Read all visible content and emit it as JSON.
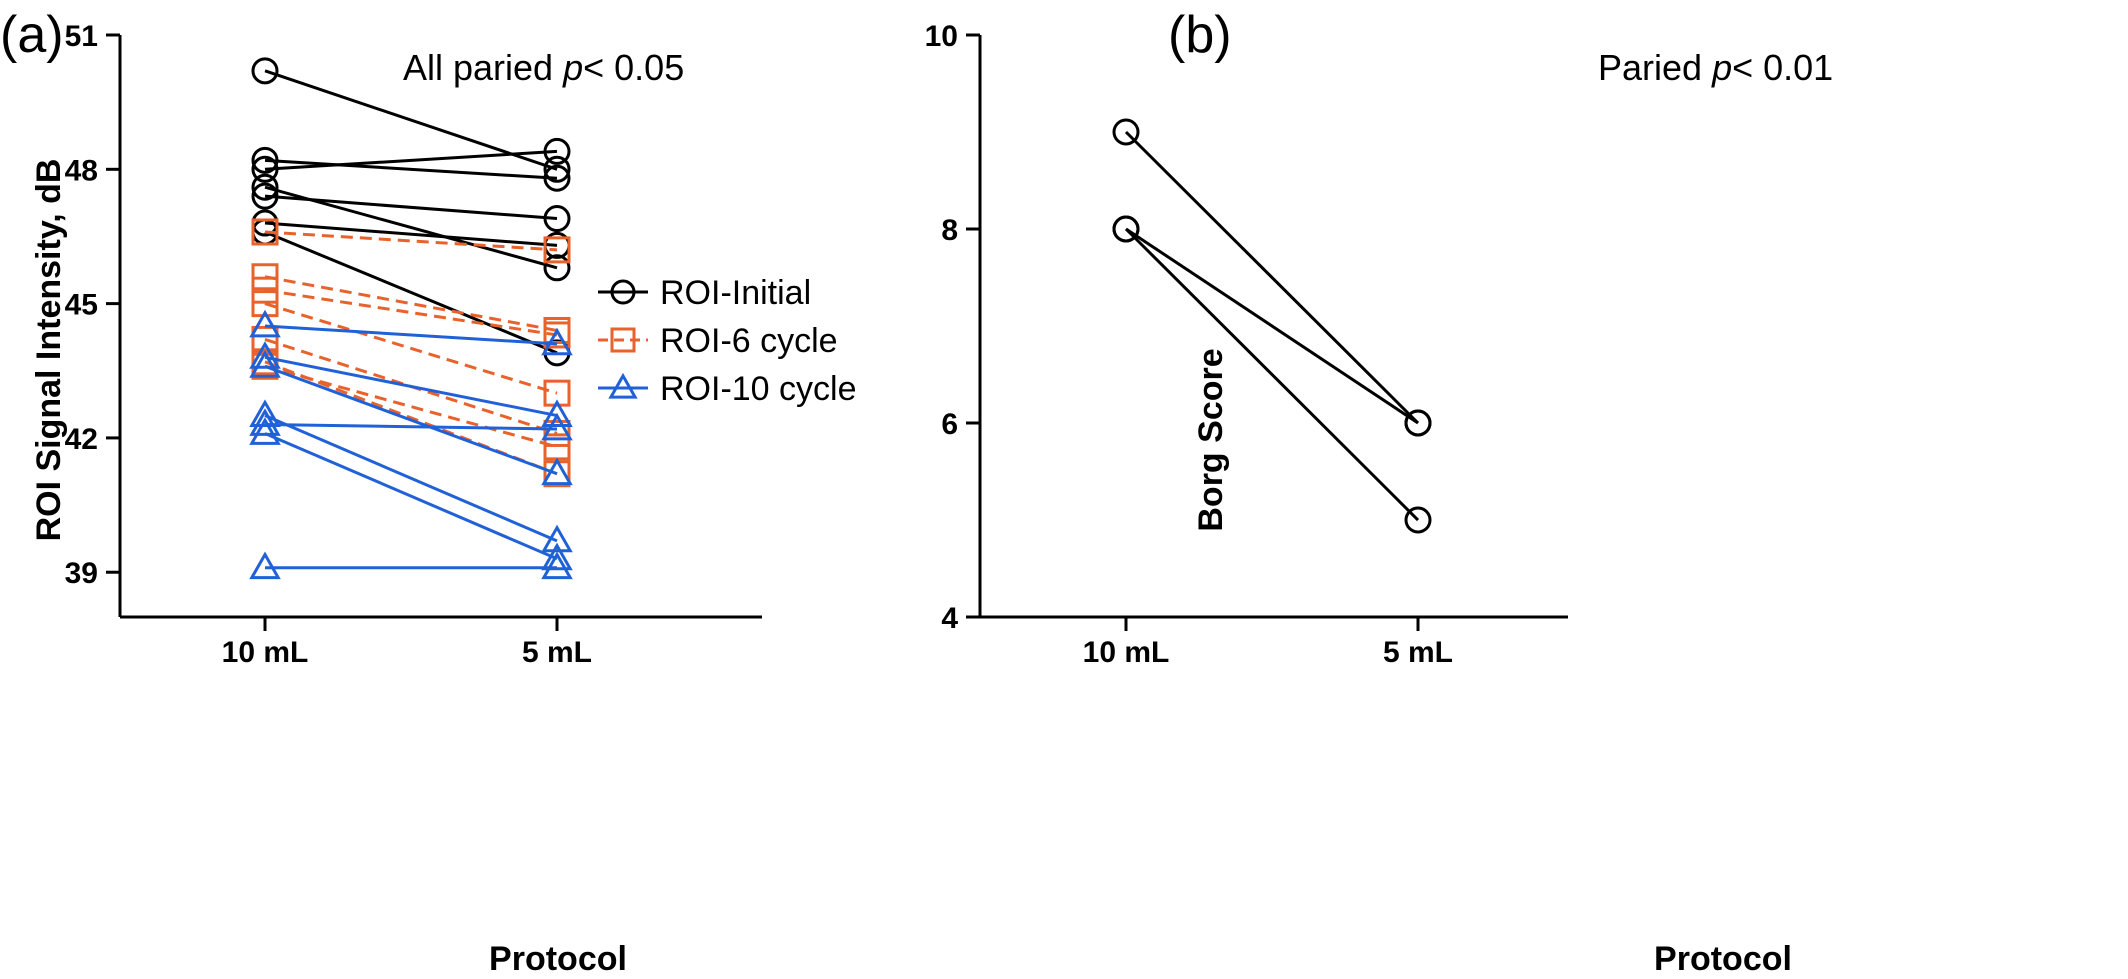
{
  "chart_data": [
    {
      "type": "line",
      "panel_label": "(a)",
      "annotation_prefix": "All paried ",
      "annotation_p": "p",
      "annotation_suffix": "< 0.05",
      "xlabel": "Protocol",
      "ylabel": "ROI Signal Intensity, dB",
      "categories": [
        "10 mL",
        "5 mL"
      ],
      "ylim": [
        38,
        51
      ],
      "yticks": [
        39,
        42,
        45,
        48,
        51
      ],
      "legend_position": "right",
      "series": [
        {
          "name": "ROI-Initial",
          "color": "#000000",
          "marker": "circle",
          "line_style": "solid",
          "pairs": [
            [
              50.2,
              48.0
            ],
            [
              48.2,
              47.8
            ],
            [
              48.0,
              48.4
            ],
            [
              47.6,
              45.8
            ],
            [
              47.4,
              46.9
            ],
            [
              46.8,
              46.3
            ],
            [
              46.6,
              43.9
            ]
          ]
        },
        {
          "name": "ROI-6 cycle",
          "color": "#e8622c",
          "marker": "square",
          "line_style": "dashed",
          "pairs": [
            [
              46.6,
              46.2
            ],
            [
              45.6,
              44.4
            ],
            [
              45.3,
              44.3
            ],
            [
              45.0,
              43.0
            ],
            [
              44.2,
              42.1
            ],
            [
              43.7,
              41.2
            ],
            [
              43.6,
              41.8
            ]
          ]
        },
        {
          "name": "ROI-10 cycle",
          "color": "#2161d7",
          "marker": "triangle",
          "line_style": "solid",
          "pairs": [
            [
              44.5,
              44.1
            ],
            [
              43.8,
              42.5
            ],
            [
              43.6,
              41.2
            ],
            [
              42.5,
              39.7
            ],
            [
              42.3,
              42.2
            ],
            [
              42.1,
              39.3
            ],
            [
              39.1,
              39.1
            ]
          ]
        }
      ]
    },
    {
      "type": "line",
      "panel_label": "(b)",
      "annotation_prefix": "Paried ",
      "annotation_p": "p",
      "annotation_suffix": "< 0.01",
      "xlabel": "Protocol",
      "ylabel": "Borg Score",
      "categories": [
        "10 mL",
        "5 mL"
      ],
      "ylim": [
        4,
        10
      ],
      "yticks": [
        4,
        6,
        8,
        10
      ],
      "series": [
        {
          "color": "#000000",
          "marker": "circle",
          "line_style": "solid",
          "pairs": [
            [
              9,
              6
            ],
            [
              8,
              6
            ],
            [
              8,
              5
            ]
          ]
        }
      ]
    }
  ]
}
